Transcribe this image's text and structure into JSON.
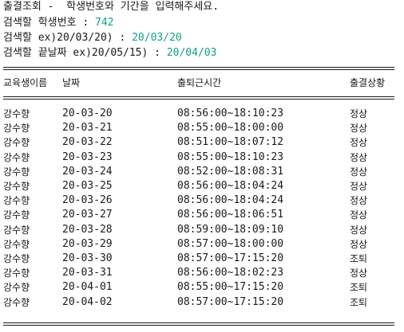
{
  "prompt": {
    "title": "출결조회 -  학생번호와 기간을 입력해주세요.",
    "student_label": "검색할 학생번호 : ",
    "student_value": "742",
    "start_label": "검색할 ex)20/03/20) : ",
    "start_value": "20/03/20",
    "end_label": "검색할 끝날짜 ex)20/05/15) : ",
    "end_value": "20/04/03"
  },
  "table": {
    "headers": {
      "name": "교육생이름",
      "date": "날짜",
      "time": "출퇴근시간",
      "status": "출결상황"
    },
    "rows": [
      {
        "name": "강수향",
        "date": "20-03-20",
        "time": "08:56:00~18:10:23",
        "status": "정상"
      },
      {
        "name": "강수향",
        "date": "20-03-21",
        "time": "08:55:00~18:00:00",
        "status": "정상"
      },
      {
        "name": "강수향",
        "date": "20-03-22",
        "time": "08:51:00~18:07:12",
        "status": "정상"
      },
      {
        "name": "강수향",
        "date": "20-03-23",
        "time": "08:55:00~18:10:23",
        "status": "정상"
      },
      {
        "name": "강수향",
        "date": "20-03-24",
        "time": "08:52:00~18:08:31",
        "status": "정상"
      },
      {
        "name": "강수향",
        "date": "20-03-25",
        "time": "08:56:00~18:04:24",
        "status": "정상"
      },
      {
        "name": "강수향",
        "date": "20-03-26",
        "time": "08:56:00~18:04:24",
        "status": "정상"
      },
      {
        "name": "강수향",
        "date": "20-03-27",
        "time": "08:56:00~18:06:51",
        "status": "정상"
      },
      {
        "name": "강수향",
        "date": "20-03-28",
        "time": "08:59:00~18:09:10",
        "status": "정상"
      },
      {
        "name": "강수향",
        "date": "20-03-29",
        "time": "08:57:00~18:00:00",
        "status": "정상"
      },
      {
        "name": "강수향",
        "date": "20-03-30",
        "time": "08:57:00~17:15:20",
        "status": "조퇴"
      },
      {
        "name": "강수향",
        "date": "20-03-31",
        "time": "08:56:00~18:02:23",
        "status": "정상"
      },
      {
        "name": "강수향",
        "date": "20-04-01",
        "time": "08:55:00~17:15:20",
        "status": "조퇴"
      },
      {
        "name": "강수향",
        "date": "20-04-02",
        "time": "08:57:00~17:15:20",
        "status": "조퇴"
      }
    ]
  },
  "colors": {
    "input_value": "#16a085",
    "text": "#1a1a1a",
    "background": "#ffffff"
  }
}
